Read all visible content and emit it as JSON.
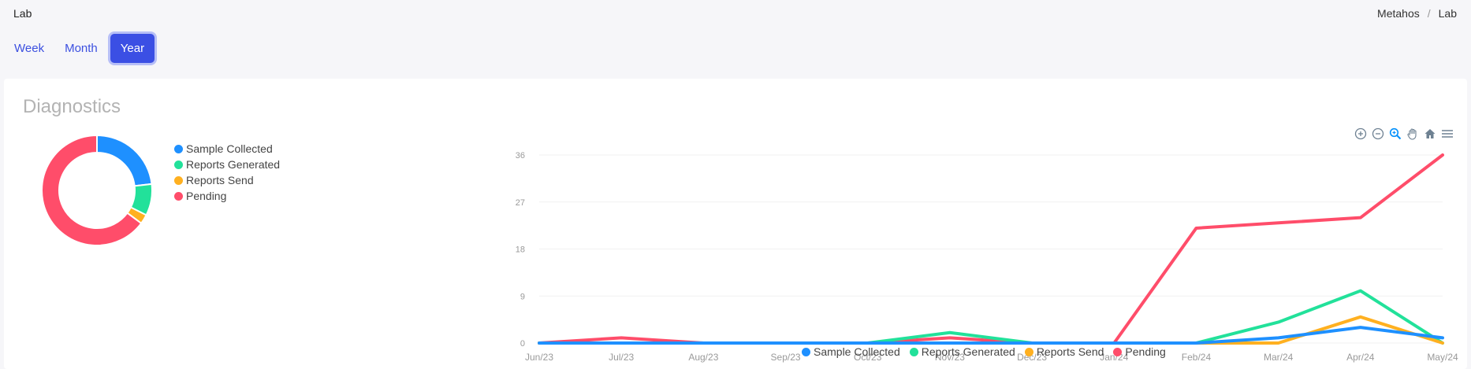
{
  "header": {
    "page_title": "Lab",
    "breadcrumb": [
      "Metahos",
      "Lab"
    ],
    "breadcrumb_sep": "/"
  },
  "range_tabs": [
    {
      "label": "Week",
      "active": false
    },
    {
      "label": "Month",
      "active": false
    },
    {
      "label": "Year",
      "active": true
    }
  ],
  "card": {
    "title": "Diagnostics"
  },
  "colors": {
    "sample_collected": "#1e90ff",
    "reports_generated": "#22e19a",
    "reports_send": "#ffb020",
    "pending": "#ff4d6a"
  },
  "toolbar": {
    "icons": [
      "zoom-in-icon",
      "zoom-out-icon",
      "zoom-select-icon",
      "pan-icon",
      "home-icon",
      "menu-icon"
    ]
  },
  "chart_data": [
    {
      "type": "pie",
      "variant": "donut",
      "labels": [
        "Sample Collected",
        "Reports Generated",
        "Reports Send",
        "Pending"
      ],
      "values": [
        5,
        2,
        0.6,
        14
      ],
      "legend": "right"
    },
    {
      "type": "line",
      "categories": [
        "Jun/23",
        "Jul/23",
        "Aug/23",
        "Sep/23",
        "Oct/23",
        "Nov/23",
        "Dec/23",
        "Jan/24",
        "Feb/24",
        "Mar/24",
        "Apr/24",
        "May/24"
      ],
      "series": [
        {
          "name": "Sample Collected",
          "values": [
            0,
            0,
            0,
            0,
            0,
            0,
            0,
            0,
            0,
            1,
            3,
            1
          ]
        },
        {
          "name": "Reports Generated",
          "values": [
            0,
            0,
            0,
            0,
            0,
            2,
            0,
            0,
            0,
            4,
            10,
            0
          ]
        },
        {
          "name": "Reports Send",
          "values": [
            0,
            0,
            0,
            0,
            0,
            0,
            0,
            0,
            0,
            0,
            5,
            0
          ]
        },
        {
          "name": "Pending",
          "values": [
            0,
            1,
            0,
            0,
            0,
            1,
            0,
            0,
            22,
            23,
            24,
            36
          ]
        }
      ],
      "yticks": [
        0,
        9,
        18,
        27,
        36
      ],
      "ylim": [
        0,
        36
      ],
      "legend": "bottom",
      "grid": true
    }
  ]
}
